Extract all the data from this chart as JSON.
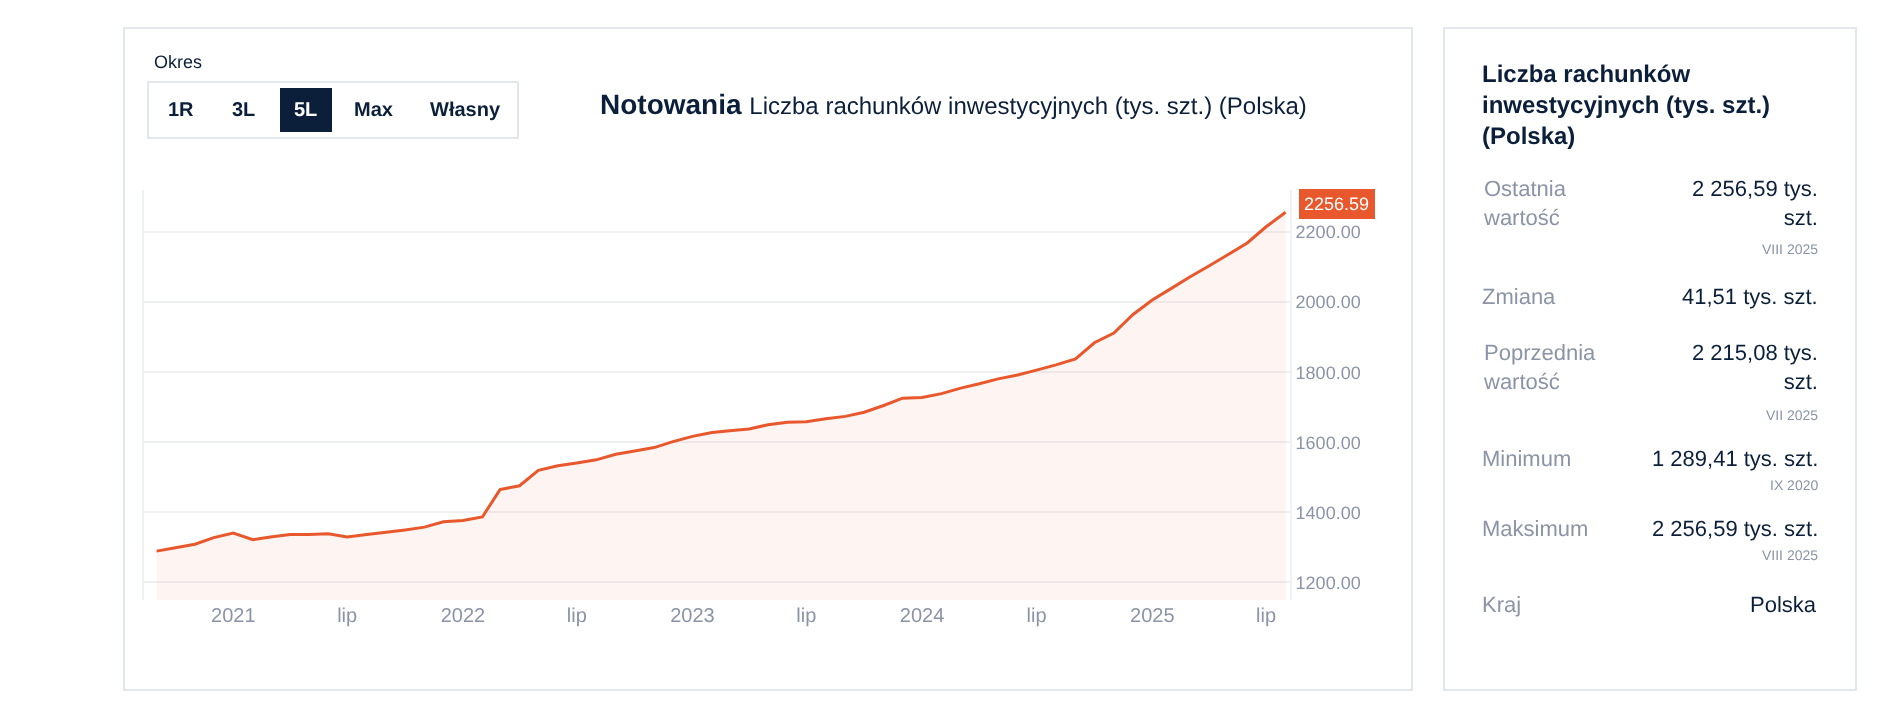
{
  "chart_data": {
    "type": "area",
    "title": "Notowania",
    "subtitle": "Liczba rachunków inwestycyjnych (tys. szt.) (Polska)",
    "x": [
      "2020-09",
      "2020-10",
      "2020-11",
      "2020-12",
      "2021-01",
      "2021-02",
      "2021-03",
      "2021-04",
      "2021-05",
      "2021-06",
      "2021-07",
      "2021-08",
      "2021-09",
      "2021-10",
      "2021-11",
      "2021-12",
      "2022-01",
      "2022-02",
      "2022-03",
      "2022-04",
      "2022-05",
      "2022-06",
      "2022-07",
      "2022-08",
      "2022-09",
      "2022-10",
      "2022-11",
      "2022-12",
      "2023-01",
      "2023-02",
      "2023-03",
      "2023-04",
      "2023-05",
      "2023-06",
      "2023-07",
      "2023-08",
      "2023-09",
      "2023-10",
      "2023-11",
      "2023-12",
      "2024-01",
      "2024-02",
      "2024-03",
      "2024-04",
      "2024-05",
      "2024-06",
      "2024-07",
      "2024-08",
      "2024-09",
      "2024-10",
      "2024-11",
      "2024-12",
      "2025-01",
      "2025-02",
      "2025-03",
      "2025-04",
      "2025-05",
      "2025-06",
      "2025-07",
      "2025-08"
    ],
    "series": [
      {
        "color": "#e8582c",
        "values": [
          1289.41,
          1299,
          1309,
          1328,
          1341,
          1322,
          1330,
          1337,
          1337,
          1339,
          1330,
          1337,
          1343,
          1350,
          1358,
          1373,
          1377,
          1387,
          1465,
          1476,
          1520,
          1533,
          1541,
          1550,
          1566,
          1575,
          1585,
          1602,
          1617,
          1628,
          1633,
          1638,
          1650,
          1657,
          1659,
          1667,
          1674,
          1686,
          1705,
          1726,
          1728,
          1739,
          1754,
          1767,
          1781,
          1792,
          1806,
          1821,
          1838,
          1884,
          1912,
          1964,
          2006,
          2040,
          2071,
          2103,
          2135,
          2169,
          2215.08,
          2256.59
        ]
      }
    ],
    "xlim": [
      "2020-08-12",
      "2025-08-08"
    ],
    "xticks": [
      {
        "value": "2021-01",
        "label": "2021"
      },
      {
        "value": "2021-07",
        "label": "lip"
      },
      {
        "value": "2022-01",
        "label": "2022"
      },
      {
        "value": "2022-07",
        "label": "lip"
      },
      {
        "value": "2023-01",
        "label": "2023"
      },
      {
        "value": "2023-07",
        "label": "lip"
      },
      {
        "value": "2024-01",
        "label": "2024"
      },
      {
        "value": "2024-07",
        "label": "lip"
      },
      {
        "value": "2025-01",
        "label": "2025"
      },
      {
        "value": "2025-07",
        "label": "lip"
      }
    ],
    "ylim": [
      1150,
      2320
    ],
    "yticks": [
      {
        "value": 1200,
        "label": "1200.00"
      },
      {
        "value": 1400,
        "label": "1400.00"
      },
      {
        "value": 1600,
        "label": "1600.00"
      },
      {
        "value": 1800,
        "label": "1800.00"
      },
      {
        "value": 2000,
        "label": "2000.00"
      },
      {
        "value": 2200,
        "label": "2200.00"
      }
    ],
    "grid": "y",
    "annotations": [
      {
        "text": "2256.59",
        "x": "2025-08",
        "y": 2256.59
      },
      "Okres",
      "1R",
      "3L",
      "5L",
      "Max",
      "Własny",
      "Liczba rachunków inwestycyjnych (tys. szt.) (Polska)",
      "Ostatnia wartość",
      "2 256,59 tys. szt.",
      "VIII 2025",
      "Zmiana",
      "41,51 tys. szt.",
      "Poprzednia wartość",
      "2 215,08 tys. szt.",
      "VII 2025",
      "Minimum",
      "1 289,41 tys. szt.",
      "IX 2020",
      "Maksimum",
      "2 256,59 tys. szt.",
      "VIII 2025",
      "Kraj",
      "Polska"
    ]
  }
}
